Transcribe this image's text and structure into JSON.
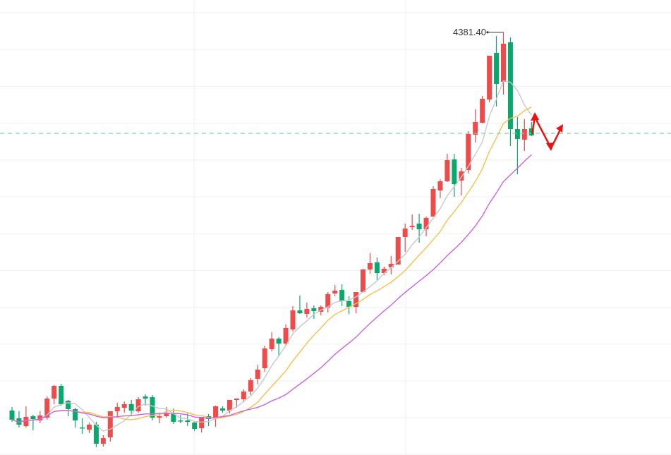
{
  "chart_data": {
    "type": "candlestick",
    "title": "",
    "xlabel": "",
    "ylabel": "",
    "ylim": [
      3183,
      4473
    ],
    "grid": true,
    "up_color": "#ee4b4b",
    "down_color": "#0aa86c",
    "fields": [
      "open",
      "high",
      "low",
      "close"
    ],
    "candles": [
      [
        3309,
        3319,
        3277,
        3283
      ],
      [
        3287,
        3307,
        3261,
        3269
      ],
      [
        3265,
        3321,
        3261,
        3291
      ],
      [
        3293,
        3297,
        3253,
        3285
      ],
      [
        3281,
        3307,
        3273,
        3295
      ],
      [
        3289,
        3349,
        3283,
        3343
      ],
      [
        3343,
        3381,
        3327,
        3379
      ],
      [
        3379,
        3385,
        3323,
        3327
      ],
      [
        3337,
        3339,
        3293,
        3313
      ],
      [
        3313,
        3317,
        3261,
        3281
      ],
      [
        3261,
        3287,
        3243,
        3259
      ],
      [
        3255,
        3275,
        3245,
        3269
      ],
      [
        3269,
        3277,
        3205,
        3215
      ],
      [
        3215,
        3239,
        3207,
        3231
      ],
      [
        3233,
        3307,
        3221,
        3307
      ],
      [
        3307,
        3331,
        3293,
        3319
      ],
      [
        3317,
        3335,
        3303,
        3327
      ],
      [
        3327,
        3339,
        3293,
        3309
      ],
      [
        3307,
        3347,
        3303,
        3341
      ],
      [
        3349,
        3355,
        3323,
        3343
      ],
      [
        3347,
        3353,
        3281,
        3289
      ],
      [
        3289,
        3303,
        3273,
        3293
      ],
      [
        3293,
        3319,
        3289,
        3301
      ],
      [
        3299,
        3315,
        3271,
        3277
      ],
      [
        3281,
        3297,
        3273,
        3279
      ],
      [
        3281,
        3301,
        3265,
        3277
      ],
      [
        3275,
        3279,
        3251,
        3257
      ],
      [
        3259,
        3291,
        3247,
        3291
      ],
      [
        3293,
        3299,
        3265,
        3285
      ],
      [
        3287,
        3323,
        3263,
        3321
      ],
      [
        3315,
        3321,
        3303,
        3309
      ],
      [
        3309,
        3339,
        3301,
        3339
      ],
      [
        3339,
        3343,
        3317,
        3343
      ],
      [
        3341,
        3369,
        3333,
        3363
      ],
      [
        3363,
        3401,
        3353,
        3395
      ],
      [
        3399,
        3439,
        3383,
        3425
      ],
      [
        3429,
        3493,
        3419,
        3485
      ],
      [
        3483,
        3531,
        3477,
        3513
      ],
      [
        3513,
        3517,
        3463,
        3499
      ],
      [
        3499,
        3553,
        3493,
        3543
      ],
      [
        3539,
        3605,
        3533,
        3593
      ],
      [
        3593,
        3635,
        3583,
        3585
      ],
      [
        3583,
        3615,
        3573,
        3597
      ],
      [
        3599,
        3607,
        3569,
        3591
      ],
      [
        3589,
        3607,
        3579,
        3603
      ],
      [
        3601,
        3645,
        3587,
        3639
      ],
      [
        3641,
        3665,
        3633,
        3649
      ],
      [
        3651,
        3667,
        3605,
        3619
      ],
      [
        3619,
        3633,
        3583,
        3603
      ],
      [
        3603,
        3645,
        3585,
        3645
      ],
      [
        3645,
        3711,
        3643,
        3709
      ],
      [
        3709,
        3755,
        3697,
        3727
      ],
      [
        3729,
        3743,
        3679,
        3699
      ],
      [
        3699,
        3717,
        3693,
        3711
      ],
      [
        3715,
        3747,
        3695,
        3725
      ],
      [
        3723,
        3801,
        3723,
        3801
      ],
      [
        3801,
        3839,
        3759,
        3825
      ],
      [
        3829,
        3865,
        3821,
        3833
      ],
      [
        3839,
        3867,
        3785,
        3823
      ],
      [
        3823,
        3859,
        3803,
        3855
      ],
      [
        3859,
        3945,
        3859,
        3937
      ],
      [
        3933,
        3965,
        3911,
        3959
      ],
      [
        3959,
        4037,
        3957,
        4019
      ],
      [
        4021,
        4037,
        3915,
        3951
      ],
      [
        3961,
        3997,
        3919,
        3987
      ],
      [
        3991,
        4101,
        3981,
        4093
      ],
      [
        4091,
        4163,
        4069,
        4127
      ],
      [
        4125,
        4201,
        4123,
        4193
      ],
      [
        4191,
        4315,
        4183,
        4315
      ],
      [
        4323,
        4371,
        4171,
        4235
      ],
      [
        4241,
        4381.4,
        4205,
        4349
      ],
      [
        4353,
        4367,
        4059,
        4107
      ],
      [
        4107,
        4141,
        3979,
        4079
      ],
      [
        4077,
        4135,
        4045,
        4107
      ],
      [
        4109,
        4127,
        4087,
        4089
      ]
    ],
    "moving_averages": [
      {
        "period": 5,
        "color": "#c9c9c9"
      },
      {
        "period": 10,
        "color": "#f7c04e"
      },
      {
        "period": 20,
        "color": "#c965e0"
      }
    ],
    "price_line": {
      "value": 4095,
      "color": "#7ed3b6"
    },
    "max_annotation": {
      "label": "4381.40",
      "value": 4381.4
    },
    "arrow_color": "#ee1111"
  }
}
